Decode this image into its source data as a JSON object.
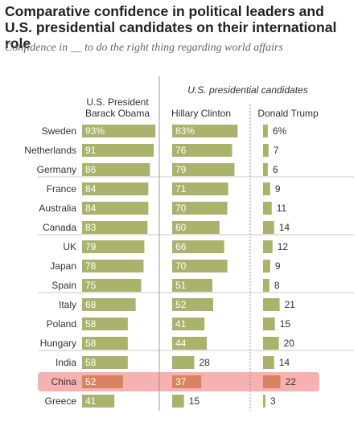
{
  "title": "Comparative confidence in political leaders and U.S. presidential candidates on their international role",
  "subtitle": "Confidence in __ to do the right thing regarding world affairs",
  "colors": {
    "bar": "#a9b36c",
    "bar_highlight": "#d98460",
    "highlight_band": "#f5a3a3",
    "divider": "#999999",
    "row_rule": "#c8c8c8",
    "label": "#333333",
    "value_light": "#ffffff",
    "value_dark": "#333333"
  },
  "chart_data": {
    "type": "bar",
    "group_header": "U.S. presidential candidates",
    "highlight_category": "China",
    "percent_on_first_row": true,
    "categories": [
      "Sweden",
      "Netherlands",
      "Germany",
      "France",
      "Australia",
      "Canada",
      "UK",
      "Japan",
      "Spain",
      "Italy",
      "Poland",
      "Hungary",
      "India",
      "China",
      "Greece"
    ],
    "row_groups": [
      [
        0,
        1,
        2
      ],
      [
        3,
        4,
        5
      ],
      [
        6,
        7,
        8
      ],
      [
        9,
        10,
        11
      ],
      [
        12,
        13,
        14
      ]
    ],
    "series": [
      {
        "name": "U.S. President Barack Obama",
        "header_lines": [
          "U.S. President",
          "Barack Obama"
        ],
        "values": [
          93,
          91,
          86,
          84,
          84,
          83,
          79,
          78,
          75,
          68,
          58,
          58,
          58,
          52,
          41
        ]
      },
      {
        "name": "Hillary Clinton",
        "header_lines": [
          "Hillary Clinton"
        ],
        "values": [
          83,
          76,
          79,
          71,
          70,
          60,
          66,
          70,
          51,
          52,
          41,
          44,
          28,
          37,
          15
        ]
      },
      {
        "name": "Donald Trump",
        "header_lines": [
          "Donald Trump"
        ],
        "values": [
          6,
          7,
          6,
          9,
          11,
          14,
          12,
          9,
          8,
          21,
          15,
          20,
          14,
          22,
          3
        ]
      }
    ]
  }
}
